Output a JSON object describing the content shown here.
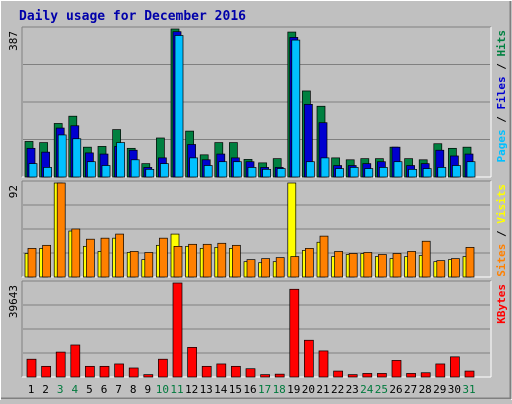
{
  "chart_data": {
    "type": "bar",
    "title": "Daily usage for December 2016",
    "categories": [
      "1",
      "2",
      "3",
      "4",
      "5",
      "6",
      "7",
      "8",
      "9",
      "10",
      "11",
      "12",
      "13",
      "14",
      "15",
      "16",
      "17",
      "18",
      "19",
      "20",
      "21",
      "22",
      "23",
      "24",
      "25",
      "26",
      "27",
      "28",
      "29",
      "30",
      "31"
    ],
    "weekend_days": [
      3,
      4,
      10,
      11,
      17,
      18,
      24,
      25,
      31
    ],
    "colors": {
      "background": "#c0c0c0",
      "title": "#0000aa",
      "axis_text": "#000000",
      "weekday_label": "#000000",
      "weekend_label": "#007a3d",
      "gridline": "#808080",
      "hits": "#008040",
      "files": "#0000d0",
      "pages": "#00c0ff",
      "visits": "#ffff00",
      "sites": "#ff8000",
      "kbytes": "#ff0000"
    },
    "panels": [
      {
        "axis_label": "387",
        "right_labels": [
          {
            "text": "Pages",
            "color": "#00c0ff"
          },
          {
            "text": " / ",
            "color": "#000000"
          },
          {
            "text": "Files",
            "color": "#0000d0"
          },
          {
            "text": " / ",
            "color": "#000000"
          },
          {
            "text": "Hits",
            "color": "#008040"
          }
        ],
        "ylim": [
          0,
          387
        ],
        "series": [
          {
            "name": "Hits",
            "color": "#008040",
            "values": [
              93,
              90,
              140,
              159,
              78,
              80,
              124,
              75,
              35,
              102,
              387,
              120,
              58,
              90,
              90,
              46,
              37,
              48,
              379,
              225,
              185,
              50,
              45,
              48,
              48,
              78,
              48,
              45,
              87,
              75,
              78
            ]
          },
          {
            "name": "Files",
            "color": "#0000d0",
            "values": [
              75,
              65,
              128,
              134,
              63,
              60,
              80,
              70,
              25,
              50,
              380,
              85,
              45,
              60,
              50,
              40,
              25,
              25,
              365,
              190,
              142,
              30,
              30,
              35,
              40,
              78,
              30,
              35,
              70,
              55,
              60
            ]
          },
          {
            "name": "Pages",
            "color": "#00c0ff",
            "values": [
              35,
              25,
              110,
              100,
              40,
              30,
              90,
              45,
              20,
              35,
              370,
              50,
              30,
              40,
              40,
              25,
              20,
              22,
              358,
              40,
              50,
              22,
              25,
              22,
              25,
              40,
              20,
              22,
              25,
              30,
              40
            ]
          }
        ]
      },
      {
        "axis_label": "92",
        "right_labels": [
          {
            "text": "Sites",
            "color": "#ff8000"
          },
          {
            "text": " / ",
            "color": "#000000"
          },
          {
            "text": "Visits",
            "color": "#ffff00"
          }
        ],
        "ylim": [
          0,
          92
        ],
        "series": [
          {
            "name": "Visits",
            "color": "#ffff00",
            "values": [
              23,
              28,
              92,
              45,
              30,
              25,
              38,
              24,
              17,
              31,
              42,
              30,
              28,
              29,
              28,
              15,
              14,
              15,
              92,
              26,
              34,
              20,
              22,
              23,
              20,
              18,
              20,
              21,
              15,
              17,
              20
            ]
          },
          {
            "name": "Sites",
            "color": "#ff8000",
            "values": [
              28,
              31,
              92,
              47,
              37,
              38,
              42,
              25,
              24,
              38,
              30,
              32,
              32,
              33,
              31,
              17,
              18,
              19,
              20,
              28,
              40,
              25,
              23,
              24,
              22,
              23,
              25,
              35,
              16,
              18,
              29
            ]
          }
        ]
      },
      {
        "axis_label": "39643",
        "right_labels": [
          {
            "text": "KBytes",
            "color": "#ff0000"
          }
        ],
        "ylim": [
          0,
          39643
        ],
        "series": [
          {
            "name": "KBytes",
            "color": "#ff0000",
            "values": [
              7500,
              4500,
              10500,
              13500,
              4500,
              4500,
              5500,
              3800,
              1000,
              7500,
              39643,
              12500,
              4500,
              5500,
              4500,
              3500,
              1000,
              1200,
              37000,
              15500,
              11000,
              2500,
              1000,
              1500,
              1500,
              7000,
              1500,
              1800,
              5500,
              8500,
              2500
            ]
          }
        ]
      }
    ]
  }
}
